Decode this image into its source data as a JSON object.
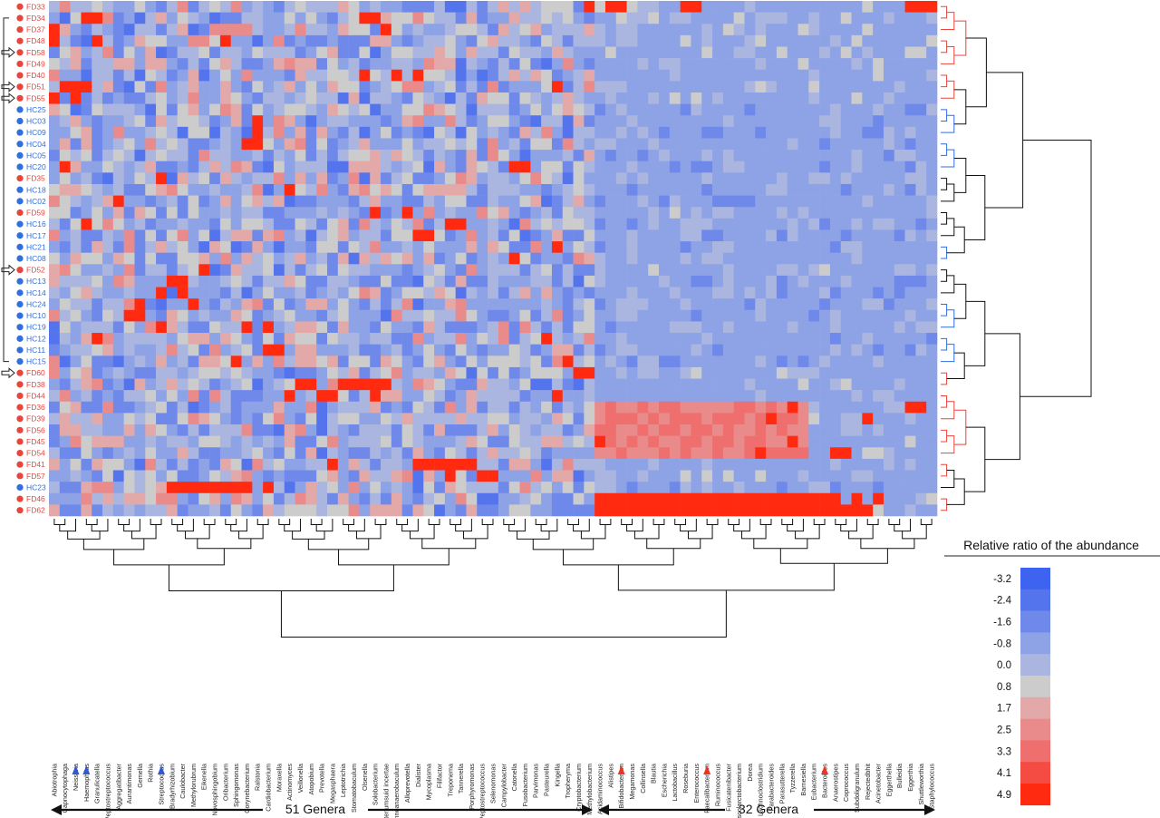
{
  "chart_data": {
    "type": "heatmap",
    "rows": [
      "FD33",
      "FD34",
      "FD37",
      "FD48",
      "FD58",
      "FD49",
      "FD40",
      "FD51",
      "FD55",
      "HC25",
      "HC03",
      "HC09",
      "HC04",
      "HC05",
      "HC20",
      "FD35",
      "HC18",
      "HC02",
      "FD59",
      "HC16",
      "HC17",
      "HC21",
      "HC08",
      "FD52",
      "HC13",
      "HC14",
      "HC24",
      "HC10",
      "HC19",
      "HC12",
      "HC11",
      "HC15",
      "FD60",
      "FD38",
      "FD44",
      "FD36",
      "FD39",
      "FD56",
      "FD45",
      "FD54",
      "FD41",
      "FD57",
      "HC23",
      "FD46",
      "FD62"
    ],
    "columns": [
      "Abiotrophia",
      "Capnocytophaga",
      "Neisseria",
      "Haemophilus",
      "Granulicatella",
      "Peptostreptococcus",
      "Aggregatibacter",
      "Aurantimonas",
      "Gemella",
      "Rothia",
      "Streptococcus",
      "Bradyrhizobium",
      "Caulobacter",
      "Methylorubrum",
      "Eikenella",
      "Novosphingobium",
      "Oribacterium",
      "Sphingomonas",
      "Corynebacterium",
      "Ralstonia",
      "Cardiobacterium",
      "Moraxella",
      "Actinomyces",
      "Veillonella",
      "Atopobium",
      "Prevotella",
      "Megasphaera",
      "Leptotrichia",
      "Stomatobaculum",
      "Olsenella",
      "Solobacterium",
      "sp.Eubacteriumsuid incertae",
      "Lachnoanaerobaculum",
      "Alloprevotella",
      "Dialister",
      "Mycoplasma",
      "Filifactor",
      "Treponema",
      "Tannerella",
      "Porphyromonas",
      "Peptostreptococcus",
      "Selenomonas",
      "Campylobacter",
      "Catonella",
      "Fusobacterium",
      "Parvimonas",
      "Pasteurella",
      "Kingella",
      "Tropheryma",
      "Cryptobacterium",
      "Methylobacterium",
      "Acidaminococcus",
      "Alistipes",
      "Bifidobacterium",
      "Megamonas",
      "Collinsella",
      "Blautia",
      "Escherichia",
      "Lactobacillus",
      "Roseburia",
      "Enterococcus",
      "Faecalibacterium",
      "Ruminococcus",
      "Fusicatenibacter",
      "Phascolarctobacterium",
      "Dorea",
      "Lachnoclostridium",
      "Parabacteroides",
      "Parasutterella",
      "Tyzzerella",
      "Barnesiella",
      "Eubacterium",
      "Bacteroides",
      "Anaerostipes",
      "Coprococcus",
      "Subdoligranulum",
      "Rejectedbhit",
      "Acinetobacter",
      "Eggerthella",
      "Bulleidia",
      "Eggerthia",
      "Shuttleworthia",
      "Staphylococcus"
    ],
    "row_groups": {
      "FD": "#e8453c",
      "HC": "#2f6fe0"
    },
    "arrow_marked_rows": [
      "FD58",
      "FD51",
      "FD55",
      "FD52",
      "FD60"
    ],
    "marked_columns_blue": [
      "Neisseria",
      "Haemophilus",
      "Streptococcus"
    ],
    "marked_columns_red": [
      "Bifidobacterium",
      "Faecalibacterium",
      "Bacteroides"
    ],
    "column_groups": [
      {
        "label": "51 Genera",
        "start": 0,
        "end": 50
      },
      {
        "label": "32 Genera",
        "start": 51,
        "end": 82
      }
    ],
    "colorbar": {
      "title": "Relative ratio of the abundance",
      "ticks": [
        -3.2,
        -2.4,
        -1.6,
        -0.8,
        0.0,
        0.8,
        1.7,
        2.5,
        3.3,
        4.1,
        4.9
      ],
      "tick_labels": [
        "-3.2",
        "-2.4",
        "-1.6",
        "-0.8",
        "0.0",
        "0.8",
        "1.7",
        "2.5",
        "3.3",
        "4.1",
        "4.9"
      ],
      "colors": [
        "#3e63f0",
        "#5474ee",
        "#6f89eb",
        "#8ea2e6",
        "#aab5e0",
        "#cccccc",
        "#e3a8a8",
        "#ea8b8b",
        "#ef6e6e",
        "#f44b43",
        "#ff2a10"
      ]
    },
    "high_cells": [
      [
        "FD33",
        50
      ],
      [
        "FD33",
        52
      ],
      [
        "FD33",
        53
      ],
      [
        "FD33",
        59
      ],
      [
        "FD33",
        60
      ],
      [
        "FD33",
        80
      ],
      [
        "FD33",
        81
      ],
      [
        "FD33",
        82
      ],
      [
        "FD34",
        3
      ],
      [
        "FD34",
        4
      ],
      [
        "FD34",
        29
      ],
      [
        "FD34",
        30
      ],
      [
        "FD37",
        0
      ],
      [
        "FD37",
        31
      ],
      [
        "FD48",
        0
      ],
      [
        "FD48",
        4
      ],
      [
        "FD48",
        16
      ],
      [
        "FD40",
        29
      ],
      [
        "FD40",
        32
      ],
      [
        "FD40",
        34
      ],
      [
        "FD51",
        1
      ],
      [
        "FD51",
        2
      ],
      [
        "FD51",
        3
      ],
      [
        "FD51",
        47
      ],
      [
        "FD55",
        0
      ],
      [
        "FD55",
        2
      ],
      [
        "HC03",
        19
      ],
      [
        "HC09",
        19
      ],
      [
        "HC04",
        18
      ],
      [
        "HC04",
        19
      ],
      [
        "HC20",
        1
      ],
      [
        "HC20",
        43
      ],
      [
        "HC20",
        44
      ],
      [
        "FD35",
        10
      ],
      [
        "HC18",
        22
      ],
      [
        "HC02",
        6
      ],
      [
        "FD59",
        30
      ],
      [
        "FD59",
        33
      ],
      [
        "HC16",
        3
      ],
      [
        "HC16",
        37
      ],
      [
        "HC16",
        38
      ],
      [
        "HC17",
        34
      ],
      [
        "HC17",
        35
      ],
      [
        "HC21",
        47
      ],
      [
        "HC08",
        43
      ],
      [
        "FD52",
        14
      ],
      [
        "HC13",
        11
      ],
      [
        "HC13",
        12
      ],
      [
        "HC14",
        10
      ],
      [
        "HC14",
        12
      ],
      [
        "HC24",
        8
      ],
      [
        "HC24",
        13
      ],
      [
        "HC10",
        7
      ],
      [
        "HC10",
        8
      ],
      [
        "HC19",
        10
      ],
      [
        "HC19",
        18
      ],
      [
        "HC19",
        20
      ],
      [
        "HC12",
        4
      ],
      [
        "HC12",
        46
      ],
      [
        "HC11",
        20
      ],
      [
        "HC11",
        21
      ],
      [
        "HC15",
        17
      ],
      [
        "HC15",
        48
      ],
      [
        "FD60",
        49
      ],
      [
        "FD60",
        50
      ],
      [
        "FD38",
        23
      ],
      [
        "FD38",
        24
      ],
      [
        "FD38",
        27
      ],
      [
        "FD38",
        28
      ],
      [
        "FD38",
        29
      ],
      [
        "FD38",
        30
      ],
      [
        "FD38",
        31
      ],
      [
        "FD44",
        22
      ],
      [
        "FD44",
        25
      ],
      [
        "FD44",
        26
      ],
      [
        "FD44",
        30
      ],
      [
        "FD44",
        47
      ],
      [
        "FD36",
        69
      ],
      [
        "FD36",
        80
      ],
      [
        "FD36",
        81
      ],
      [
        "FD39",
        67
      ],
      [
        "FD39",
        76
      ],
      [
        "FD45",
        51
      ],
      [
        "FD45",
        69
      ],
      [
        "FD54",
        66
      ],
      [
        "FD54",
        73
      ],
      [
        "FD54",
        74
      ],
      [
        "FD41",
        26
      ],
      [
        "FD41",
        34
      ],
      [
        "FD41",
        35
      ],
      [
        "FD41",
        36
      ],
      [
        "FD41",
        37
      ],
      [
        "FD41",
        38
      ],
      [
        "FD41",
        39
      ],
      [
        "FD57",
        37
      ],
      [
        "FD57",
        40
      ],
      [
        "FD57",
        41
      ],
      [
        "HC23",
        11
      ],
      [
        "HC23",
        12
      ],
      [
        "HC23",
        13
      ],
      [
        "HC23",
        14
      ],
      [
        "HC23",
        15
      ],
      [
        "HC23",
        16
      ],
      [
        "HC23",
        17
      ],
      [
        "HC23",
        18
      ],
      [
        "HC23",
        20
      ],
      [
        "FD46",
        51
      ],
      [
        "FD46",
        52
      ],
      [
        "FD46",
        53
      ],
      [
        "FD46",
        54
      ],
      [
        "FD46",
        55
      ],
      [
        "FD46",
        56
      ],
      [
        "FD46",
        57
      ],
      [
        "FD46",
        58
      ],
      [
        "FD46",
        59
      ],
      [
        "FD46",
        60
      ],
      [
        "FD46",
        61
      ],
      [
        "FD46",
        62
      ],
      [
        "FD46",
        63
      ],
      [
        "FD46",
        64
      ],
      [
        "FD46",
        65
      ],
      [
        "FD46",
        66
      ],
      [
        "FD46",
        67
      ],
      [
        "FD46",
        68
      ],
      [
        "FD46",
        69
      ],
      [
        "FD46",
        70
      ],
      [
        "FD46",
        71
      ],
      [
        "FD46",
        72
      ],
      [
        "FD46",
        73
      ],
      [
        "FD46",
        75
      ],
      [
        "FD46",
        77
      ],
      [
        "FD62",
        51
      ],
      [
        "FD62",
        52
      ],
      [
        "FD62",
        53
      ],
      [
        "FD62",
        54
      ],
      [
        "FD62",
        55
      ],
      [
        "FD62",
        56
      ],
      [
        "FD62",
        57
      ],
      [
        "FD62",
        58
      ],
      [
        "FD62",
        59
      ],
      [
        "FD62",
        60
      ],
      [
        "FD62",
        61
      ],
      [
        "FD62",
        62
      ],
      [
        "FD62",
        63
      ],
      [
        "FD62",
        64
      ],
      [
        "FD62",
        65
      ],
      [
        "FD62",
        66
      ],
      [
        "FD62",
        67
      ],
      [
        "FD62",
        68
      ],
      [
        "FD62",
        69
      ],
      [
        "FD62",
        70
      ],
      [
        "FD62",
        71
      ],
      [
        "FD62",
        72
      ],
      [
        "FD62",
        73
      ],
      [
        "FD62",
        74
      ],
      [
        "FD62",
        75
      ],
      [
        "FD62",
        76
      ]
    ],
    "elevated_blocks": [
      {
        "rows": [
          "FD36",
          "FD39",
          "FD56",
          "FD45",
          "FD54"
        ],
        "col_start": 51,
        "col_end": 70,
        "level": 2.5
      }
    ]
  }
}
